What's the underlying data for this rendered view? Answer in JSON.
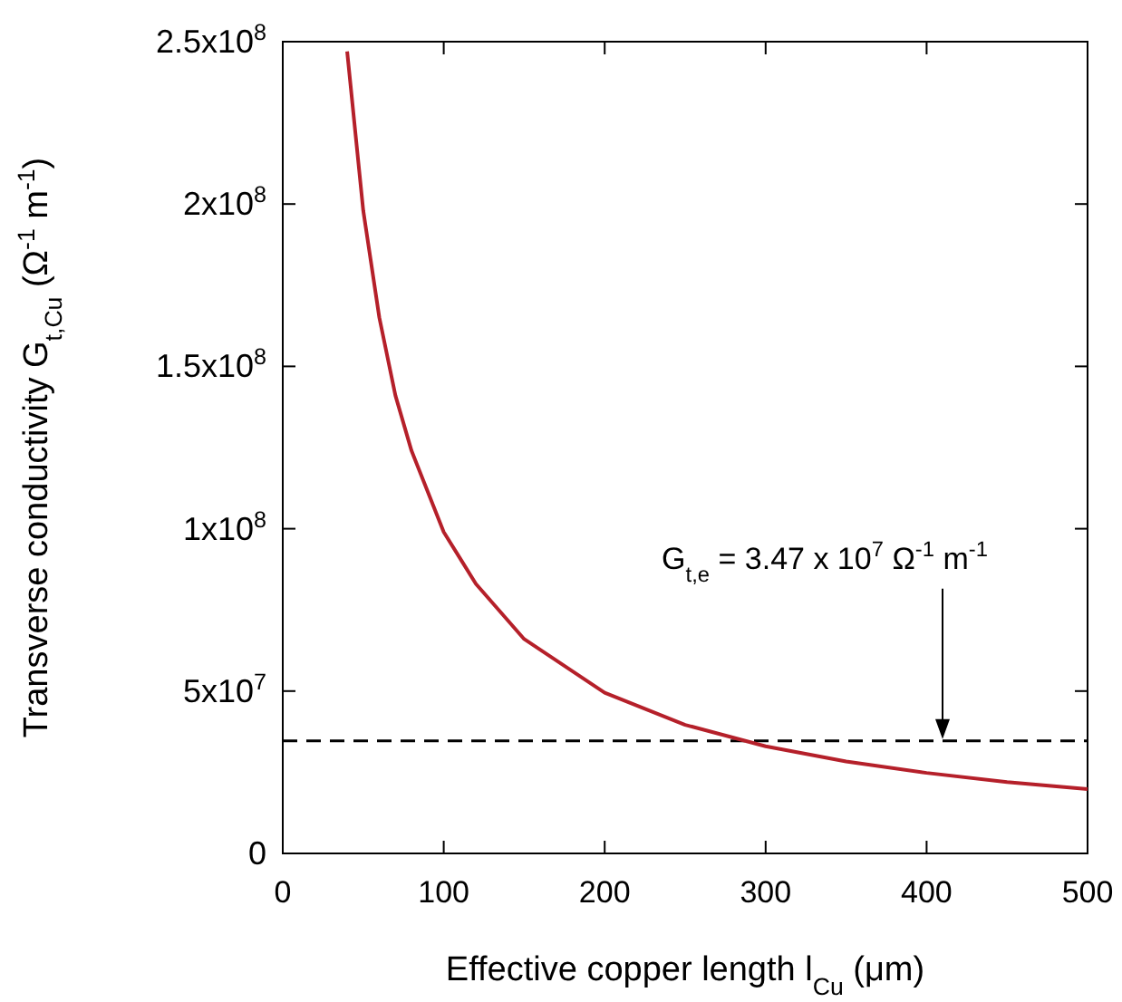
{
  "chart_data": {
    "type": "line",
    "xlabel": "Effective copper length l$_{Cu}$ (μm)",
    "ylabel": "Transverse conductivity G$_{t,Cu}$ (Ω$^{-1}$ m$^{-1}$)",
    "x": [
      40,
      50,
      60,
      70,
      80,
      100,
      120,
      150,
      200,
      250,
      300,
      350,
      400,
      450,
      500
    ],
    "series": [
      {
        "color": "#b5202a",
        "values": [
          247000000.0,
          198000000.0,
          165000000.0,
          141000000.0,
          124000000.0,
          99000000.0,
          83000000.0,
          66000000.0,
          49500000.0,
          39600000.0,
          33000000.0,
          28300000.0,
          24800000.0,
          22000000.0,
          19800000.0
        ]
      }
    ],
    "xlim": [
      0,
      500
    ],
    "xticks": [
      0,
      100,
      200,
      300,
      400,
      500
    ],
    "ylim": [
      0,
      250000000
    ],
    "yticks": [
      0,
      {
        "value": 50000000,
        "label": "5x10$^{7}$"
      },
      {
        "value": 100000000,
        "label": "1x10$^{8}$"
      },
      {
        "value": 150000000,
        "label": "1.5x10$^{8}$"
      },
      {
        "value": 200000000,
        "label": "2x10$^{8}$"
      },
      {
        "value": 250000000,
        "label": "2.5x10$^{8}$"
      }
    ],
    "ref_lines": [
      {
        "axis": "y",
        "value": 34700000,
        "color": "#000000",
        "line_style": "dashed"
      }
    ],
    "annotations": [
      "G$_{t,e}$ = 3.47 x 10$^{7}$ Ω$^{-1}$ m$^{-1}$"
    ],
    "grid": false,
    "marker": "none",
    "line_style": "solid"
  }
}
